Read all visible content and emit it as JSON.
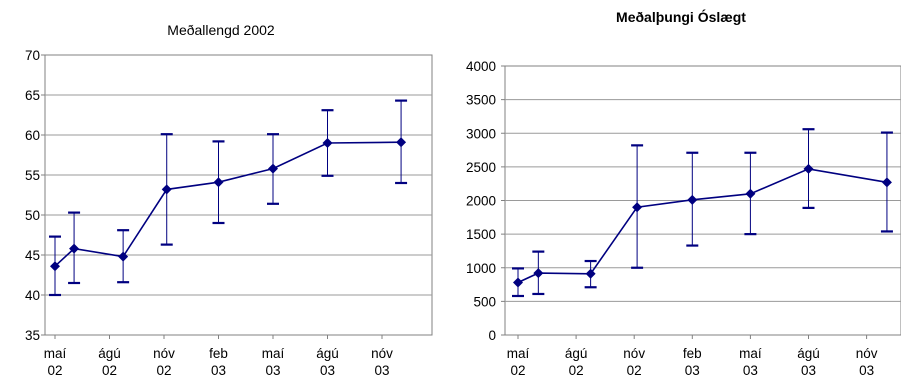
{
  "chart_data": [
    {
      "type": "line",
      "title": "Meðallengd 2002",
      "title_bold": false,
      "categories": [
        [
          "maí",
          "02"
        ],
        [
          "ágú",
          "02"
        ],
        [
          "nóv",
          "02"
        ],
        [
          "feb",
          "03"
        ],
        [
          "maí",
          "03"
        ],
        [
          "ágú",
          "03"
        ],
        [
          "nóv",
          "03"
        ]
      ],
      "ylim": [
        35,
        70
      ],
      "yticks": [
        35,
        40,
        45,
        50,
        55,
        60,
        65,
        70
      ],
      "grid": true,
      "series_color": "#000080",
      "points": [
        {
          "x": 0.0,
          "y": 43.6,
          "low": 40.0,
          "high": 47.3
        },
        {
          "x": 0.35,
          "y": 45.8,
          "low": 41.5,
          "high": 50.3
        },
        {
          "x": 1.25,
          "y": 44.8,
          "low": 41.6,
          "high": 48.1
        },
        {
          "x": 2.05,
          "y": 53.2,
          "low": 46.3,
          "high": 60.1
        },
        {
          "x": 3.0,
          "y": 54.1,
          "low": 49.0,
          "high": 59.2
        },
        {
          "x": 4.0,
          "y": 55.8,
          "low": 51.4,
          "high": 60.1
        },
        {
          "x": 5.0,
          "y": 59.0,
          "low": 54.9,
          "high": 63.1
        },
        {
          "x": 6.35,
          "y": 59.1,
          "low": 54.0,
          "high": 64.3
        }
      ]
    },
    {
      "type": "line",
      "title": "Meðalþungi Óslægt",
      "title_bold": true,
      "categories": [
        [
          "maí",
          "02"
        ],
        [
          "ágú",
          "02"
        ],
        [
          "nóv",
          "02"
        ],
        [
          "feb",
          "03"
        ],
        [
          "maí",
          "03"
        ],
        [
          "ágú",
          "03"
        ],
        [
          "nóv",
          "03"
        ]
      ],
      "ylim": [
        0,
        4000
      ],
      "yticks": [
        0,
        500,
        1000,
        1500,
        2000,
        2500,
        3000,
        3500,
        4000
      ],
      "grid": true,
      "series_color": "#000080",
      "points": [
        {
          "x": 0.0,
          "y": 780,
          "low": 580,
          "high": 990
        },
        {
          "x": 0.35,
          "y": 920,
          "low": 610,
          "high": 1240
        },
        {
          "x": 1.25,
          "y": 910,
          "low": 710,
          "high": 1100
        },
        {
          "x": 2.05,
          "y": 1900,
          "low": 1000,
          "high": 2820
        },
        {
          "x": 3.0,
          "y": 2010,
          "low": 1330,
          "high": 2710
        },
        {
          "x": 4.0,
          "y": 2100,
          "low": 1500,
          "high": 2710
        },
        {
          "x": 5.0,
          "y": 2470,
          "low": 1890,
          "high": 3060
        },
        {
          "x": 6.35,
          "y": 2270,
          "low": 1540,
          "high": 3010
        }
      ]
    }
  ]
}
